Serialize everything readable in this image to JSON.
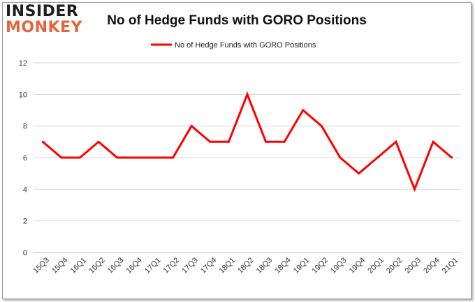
{
  "logo": {
    "line1": "INSIDER",
    "line2": "MONKEY"
  },
  "chart_data": {
    "type": "line",
    "title": "No of Hedge Funds with GORO Positions",
    "categories": [
      "15Q3",
      "15Q4",
      "16Q1",
      "16Q2",
      "16Q3",
      "16Q4",
      "17Q1",
      "17Q2",
      "17Q3",
      "17Q4",
      "18Q1",
      "18Q2",
      "18Q3",
      "18Q4",
      "19Q1",
      "19Q2",
      "19Q3",
      "19Q4",
      "20Q1",
      "20Q2",
      "20Q3",
      "20Q4",
      "21Q1"
    ],
    "series": [
      {
        "name": "No of Hedge Funds with GORO Positions",
        "values": [
          7,
          6,
          6,
          7,
          6,
          6,
          6,
          6,
          8,
          7,
          7,
          10,
          7,
          7,
          9,
          8,
          6,
          5,
          6,
          7,
          4,
          7,
          6
        ],
        "color": "#ff0000"
      }
    ],
    "ylim": [
      0,
      12
    ],
    "yticks": [
      0,
      2,
      4,
      6,
      8,
      10,
      12
    ],
    "grid": true,
    "legend": "top-center"
  }
}
